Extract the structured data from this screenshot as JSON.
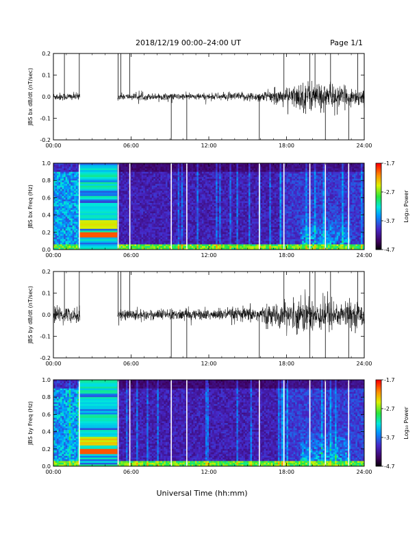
{
  "header": {
    "title": "2018/12/19   00:00–24:00 UT",
    "page": "Page 1/1"
  },
  "x_axis_title": "Universal Time (hh:mm)",
  "colors": {
    "ink": "#000000",
    "background": "#ffffff"
  },
  "chart_data": [
    {
      "type": "line",
      "ylabel": "JBS bx dB/dt (nT/sec)",
      "xlim": [
        0,
        24
      ],
      "ylim": [
        -0.2,
        0.2
      ],
      "x_ticks": [
        "00:00",
        "06:00",
        "12:00",
        "18:00",
        "24:00"
      ],
      "y_ticks": [
        "-0.2",
        "-0.1",
        "0.0",
        "0.1",
        "0.2"
      ],
      "data_gap_hours": [
        2.05,
        4.95
      ],
      "noise_envelope": {
        "x": [
          0,
          6,
          12,
          16,
          18,
          19.5,
          21,
          22.5,
          24
        ],
        "amp": [
          0.015,
          0.012,
          0.012,
          0.018,
          0.03,
          0.06,
          0.05,
          0.035,
          0.03
        ]
      },
      "spikes": [
        {
          "x": 0.85,
          "y": 0.2
        },
        {
          "x": 2.0,
          "y": 0.2
        },
        {
          "x": 5.0,
          "y": 0.2
        },
        {
          "x": 5.2,
          "y": 0.2
        },
        {
          "x": 5.9,
          "y": 0.2
        },
        {
          "x": 9.1,
          "y": -0.2
        },
        {
          "x": 10.3,
          "y": -0.2
        },
        {
          "x": 15.9,
          "y": -0.2
        },
        {
          "x": 17.8,
          "y": 0.2
        },
        {
          "x": 19.8,
          "y": 0.2
        },
        {
          "x": 20.2,
          "y": 0.2
        },
        {
          "x": 21.0,
          "y": -0.2
        },
        {
          "x": 21.4,
          "y": 0.2
        },
        {
          "x": 22.8,
          "y": -0.2
        },
        {
          "x": 23.5,
          "y": 0.2
        }
      ]
    },
    {
      "type": "heatmap",
      "ylabel": "JBS bx Freq (Hz)",
      "xlim": [
        0,
        24
      ],
      "ylim": [
        0,
        1.0
      ],
      "x_ticks": [
        "00:00",
        "06:00",
        "12:00",
        "18:00",
        "24:00"
      ],
      "y_ticks": [
        "0.0",
        "0.2",
        "0.4",
        "0.6",
        "0.8",
        "1.0"
      ],
      "colorbar": {
        "label": "Log₁₀ Power",
        "ticks": [
          "-1.7",
          "-2.7",
          "-3.7",
          "-4.7"
        ],
        "range": [
          -4.7,
          -1.7
        ]
      },
      "gap_band_hours": [
        2.05,
        4.95
      ],
      "gap_lines_hours": [
        2.0,
        5.0,
        5.9,
        9.1,
        10.3,
        15.9,
        17.8,
        19.8,
        21.0,
        22.8
      ]
    },
    {
      "type": "line",
      "ylabel": "JBS by dB/dt (nT/sec)",
      "xlim": [
        0,
        24
      ],
      "ylim": [
        -0.2,
        0.2
      ],
      "x_ticks": [
        "00:00",
        "06:00",
        "12:00",
        "18:00",
        "24:00"
      ],
      "y_ticks": [
        "-0.2",
        "-0.1",
        "0.0",
        "0.1",
        "0.2"
      ],
      "data_gap_hours": [
        2.05,
        4.95
      ],
      "noise_envelope": {
        "x": [
          0,
          6,
          12,
          16,
          18,
          19.5,
          21,
          22.5,
          24
        ],
        "amp": [
          0.03,
          0.02,
          0.02,
          0.03,
          0.045,
          0.07,
          0.06,
          0.05,
          0.045
        ]
      },
      "spikes": [
        {
          "x": 0.85,
          "y": 0.2
        },
        {
          "x": 2.0,
          "y": 0.2
        },
        {
          "x": 5.0,
          "y": 0.2
        },
        {
          "x": 5.2,
          "y": 0.2
        },
        {
          "x": 5.9,
          "y": 0.2
        },
        {
          "x": 9.1,
          "y": -0.2
        },
        {
          "x": 10.3,
          "y": -0.2
        },
        {
          "x": 15.9,
          "y": -0.2
        },
        {
          "x": 17.8,
          "y": 0.2
        },
        {
          "x": 19.8,
          "y": 0.2
        },
        {
          "x": 20.2,
          "y": 0.2
        },
        {
          "x": 21.0,
          "y": -0.2
        },
        {
          "x": 21.4,
          "y": 0.2
        },
        {
          "x": 22.8,
          "y": -0.2
        },
        {
          "x": 23.5,
          "y": 0.2
        }
      ]
    },
    {
      "type": "heatmap",
      "ylabel": "JBS by Freq (Hz)",
      "xlim": [
        0,
        24
      ],
      "ylim": [
        0,
        1.0
      ],
      "x_ticks": [
        "00:00",
        "06:00",
        "12:00",
        "18:00",
        "24:00"
      ],
      "y_ticks": [
        "0.0",
        "0.2",
        "0.4",
        "0.6",
        "0.8",
        "1.0"
      ],
      "colorbar": {
        "label": "Log₁₀ Power",
        "ticks": [
          "-1.7",
          "-2.7",
          "-3.7",
          "-4.7"
        ],
        "range": [
          -4.7,
          -1.7
        ]
      },
      "gap_band_hours": [
        2.05,
        4.95
      ],
      "gap_lines_hours": [
        2.0,
        5.0,
        5.9,
        9.1,
        10.3,
        15.9,
        17.8,
        19.8,
        21.0,
        22.8
      ]
    }
  ]
}
